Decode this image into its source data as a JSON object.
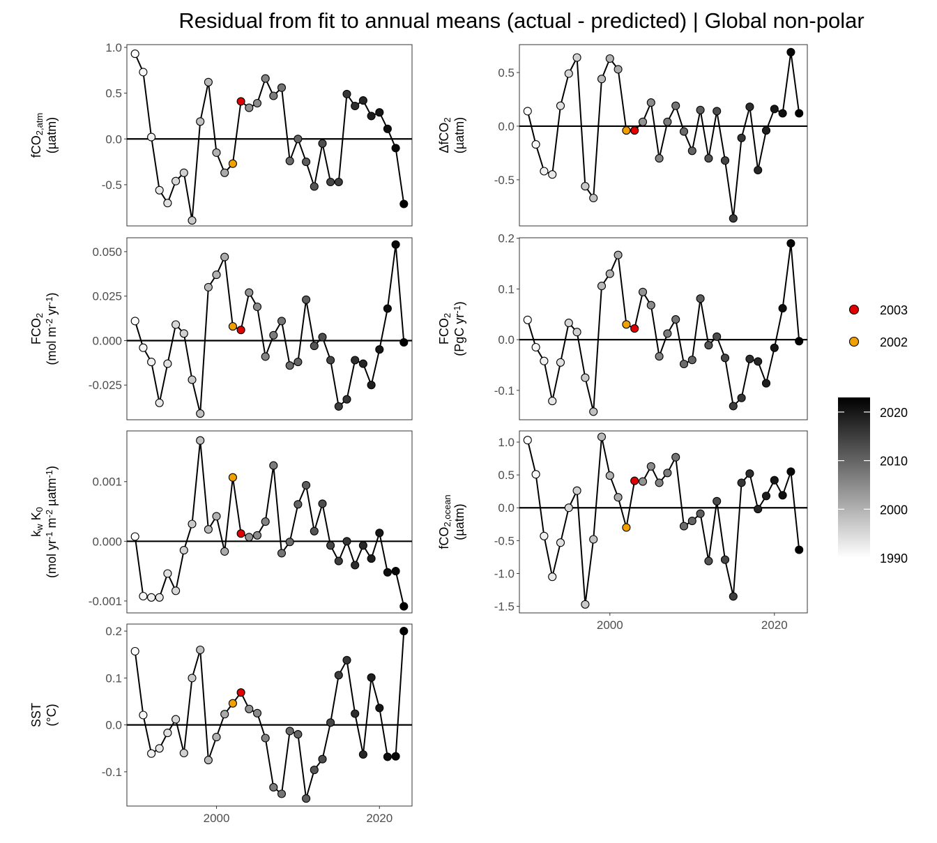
{
  "title": "Residual from fit to annual means (actual - predicted) | Global non-polar",
  "legend": {
    "highlight": [
      {
        "label": "2003",
        "color": "#e00000"
      },
      {
        "label": "2002",
        "color": "#f0a000"
      }
    ],
    "gradient_ticks": [
      "1990",
      "2000",
      "2010",
      "2020"
    ],
    "gradient_values": [
      1990,
      2000,
      2010,
      2020
    ],
    "gradient_range": [
      1990,
      2023
    ]
  },
  "chart_data": [
    {
      "type": "line",
      "id": "fco2atm",
      "ylabel_lines": [
        [
          {
            "t": "fCO"
          },
          {
            "t": "2,atm",
            "sub": true
          }
        ],
        [
          {
            "t": "(µatm)"
          }
        ]
      ],
      "ylim": [
        -0.95,
        1.03
      ],
      "yticks": [
        1.0,
        0.5,
        0.0,
        -0.5
      ],
      "ytick_labels": [
        "1.0",
        "0.5",
        "0.0",
        "-0.5"
      ],
      "xlim": [
        1989,
        2024
      ],
      "xticks": [
        2000,
        2020
      ],
      "xtick_labels": [
        "2000",
        "2020"
      ],
      "show_xaxis": false,
      "x": [
        1990,
        1991,
        1992,
        1993,
        1994,
        1995,
        1996,
        1997,
        1998,
        1999,
        2000,
        2001,
        2002,
        2003,
        2004,
        2005,
        2006,
        2007,
        2008,
        2009,
        2010,
        2011,
        2012,
        2013,
        2014,
        2015,
        2016,
        2017,
        2018,
        2019,
        2020,
        2021,
        2022,
        2023
      ],
      "values": [
        0.93,
        0.73,
        0.02,
        -0.56,
        -0.7,
        -0.46,
        -0.37,
        -0.89,
        0.19,
        0.62,
        -0.15,
        -0.37,
        -0.27,
        0.41,
        0.34,
        0.39,
        0.66,
        0.47,
        0.56,
        -0.24,
        0.0,
        -0.25,
        -0.52,
        -0.05,
        -0.47,
        -0.47,
        0.49,
        0.36,
        0.42,
        0.25,
        0.29,
        0.11,
        -0.1,
        -0.71
      ]
    },
    {
      "type": "line",
      "id": "dfco2",
      "ylabel_lines": [
        [
          {
            "t": "ΔfCO"
          },
          {
            "t": "2",
            "sub": true
          }
        ],
        [
          {
            "t": "(µatm)"
          }
        ]
      ],
      "ylim": [
        -0.93,
        0.76
      ],
      "yticks": [
        0.5,
        0.0,
        -0.5
      ],
      "ytick_labels": [
        "0.5",
        "0.0",
        "-0.5"
      ],
      "xlim": [
        1989,
        2024
      ],
      "xticks": [
        2000,
        2020
      ],
      "xtick_labels": [
        "2000",
        "2020"
      ],
      "show_xaxis": false,
      "x": [
        1990,
        1991,
        1992,
        1993,
        1994,
        1995,
        1996,
        1997,
        1998,
        1999,
        2000,
        2001,
        2002,
        2003,
        2004,
        2005,
        2006,
        2007,
        2008,
        2009,
        2010,
        2011,
        2012,
        2013,
        2014,
        2015,
        2016,
        2017,
        2018,
        2019,
        2020,
        2021,
        2022,
        2023
      ],
      "values": [
        0.14,
        -0.17,
        -0.42,
        -0.45,
        0.19,
        0.49,
        0.64,
        -0.56,
        -0.67,
        0.44,
        0.63,
        0.53,
        -0.04,
        -0.04,
        0.04,
        0.22,
        -0.3,
        0.04,
        0.19,
        -0.05,
        -0.23,
        0.15,
        -0.3,
        0.14,
        -0.32,
        -0.86,
        -0.11,
        0.18,
        -0.41,
        -0.04,
        0.16,
        0.12,
        0.69,
        0.12
      ]
    },
    {
      "type": "line",
      "id": "fco2flux_area",
      "ylabel_lines": [
        [
          {
            "t": "FCO"
          },
          {
            "t": "2",
            "sub": true
          }
        ],
        [
          {
            "t": "(mol m"
          },
          {
            "t": "-2",
            "sup": true
          },
          {
            "t": " yr"
          },
          {
            "t": "-1",
            "sup": true
          },
          {
            "t": ")"
          }
        ]
      ],
      "ylim": [
        -0.0445,
        0.0578
      ],
      "yticks": [
        0.05,
        0.025,
        0.0,
        -0.025
      ],
      "ytick_labels": [
        "0.050",
        "0.025",
        "0.000",
        "-0.025"
      ],
      "xlim": [
        1989,
        2024
      ],
      "xticks": [
        2000,
        2020
      ],
      "xtick_labels": [
        "2000",
        "2020"
      ],
      "show_xaxis": false,
      "x": [
        1990,
        1991,
        1992,
        1993,
        1994,
        1995,
        1996,
        1997,
        1998,
        1999,
        2000,
        2001,
        2002,
        2003,
        2004,
        2005,
        2006,
        2007,
        2008,
        2009,
        2010,
        2011,
        2012,
        2013,
        2014,
        2015,
        2016,
        2017,
        2018,
        2019,
        2020,
        2021,
        2022,
        2023
      ],
      "values": [
        0.011,
        -0.004,
        -0.012,
        -0.035,
        -0.013,
        0.009,
        0.004,
        -0.022,
        -0.041,
        0.03,
        0.037,
        0.047,
        0.008,
        0.006,
        0.027,
        0.019,
        -0.009,
        0.003,
        0.011,
        -0.014,
        -0.012,
        0.023,
        -0.003,
        0.002,
        -0.011,
        -0.037,
        -0.033,
        -0.011,
        -0.013,
        -0.025,
        -0.005,
        0.018,
        0.054,
        -0.001
      ]
    },
    {
      "type": "line",
      "id": "fco2flux_total",
      "ylabel_lines": [
        [
          {
            "t": "FCO"
          },
          {
            "t": "2",
            "sub": true
          }
        ],
        [
          {
            "t": "(PgC yr"
          },
          {
            "t": "-1",
            "sup": true
          },
          {
            "t": ")"
          }
        ]
      ],
      "ylim": [
        -0.158,
        0.201
      ],
      "yticks": [
        0.2,
        0.1,
        0.0,
        -0.1
      ],
      "ytick_labels": [
        "0.2",
        "0.1",
        "0.0",
        "-0.1"
      ],
      "xlim": [
        1989,
        2024
      ],
      "xticks": [
        2000,
        2020
      ],
      "xtick_labels": [
        "2000",
        "2020"
      ],
      "show_xaxis": false,
      "x": [
        1990,
        1991,
        1992,
        1993,
        1994,
        1995,
        1996,
        1997,
        1998,
        1999,
        2000,
        2001,
        2002,
        2003,
        2004,
        2005,
        2006,
        2007,
        2008,
        2009,
        2010,
        2011,
        2012,
        2013,
        2014,
        2015,
        2016,
        2017,
        2018,
        2019,
        2020,
        2021,
        2022,
        2023
      ],
      "values": [
        0.039,
        -0.015,
        -0.042,
        -0.121,
        -0.045,
        0.033,
        0.015,
        -0.075,
        -0.142,
        0.106,
        0.13,
        0.167,
        0.03,
        0.022,
        0.094,
        0.068,
        -0.033,
        0.012,
        0.04,
        -0.048,
        -0.04,
        0.081,
        -0.011,
        0.006,
        -0.036,
        -0.131,
        -0.115,
        -0.038,
        -0.043,
        -0.086,
        -0.016,
        0.062,
        0.19,
        -0.003
      ]
    },
    {
      "type": "line",
      "id": "kwk0",
      "ylabel_lines": [
        [
          {
            "t": "k"
          },
          {
            "t": "w",
            "sub": true
          },
          {
            "t": " K"
          },
          {
            "t": "0",
            "sub": true
          }
        ],
        [
          {
            "t": "(mol yr"
          },
          {
            "t": "-1",
            "sup": true
          },
          {
            "t": " m"
          },
          {
            "t": "-2",
            "sup": true
          },
          {
            "t": " µatm"
          },
          {
            "t": "-1",
            "sup": true
          },
          {
            "t": ")"
          }
        ]
      ],
      "ylim": [
        -0.0012,
        0.00185
      ],
      "yticks": [
        0.001,
        0.0,
        -0.001
      ],
      "ytick_labels": [
        "0.001",
        "0.000",
        "-0.001"
      ],
      "xlim": [
        1989,
        2024
      ],
      "xticks": [
        2000,
        2020
      ],
      "xtick_labels": [
        "2000",
        "2020"
      ],
      "show_xaxis": false,
      "x": [
        1990,
        1991,
        1992,
        1993,
        1994,
        1995,
        1996,
        1997,
        1998,
        1999,
        2000,
        2001,
        2002,
        2003,
        2004,
        2005,
        2006,
        2007,
        2008,
        2009,
        2010,
        2011,
        2012,
        2013,
        2014,
        2015,
        2016,
        2017,
        2018,
        2019,
        2020,
        2021,
        2022,
        2023
      ],
      "values": [
        8e-05,
        -0.00092,
        -0.00094,
        -0.00094,
        -0.00054,
        -0.00083,
        -0.00015,
        0.00029,
        0.00169,
        0.0002,
        0.00042,
        -0.00017,
        0.00107,
        0.00013,
        7e-05,
        0.0001,
        0.00033,
        0.00127,
        -0.0002,
        -1e-05,
        0.00062,
        0.00094,
        0.00017,
        0.00063,
        -7e-05,
        -0.00033,
        0.0,
        -0.0004,
        -7e-05,
        -0.00029,
        0.00014,
        -0.00052,
        -0.0005,
        -0.00109
      ]
    },
    {
      "type": "line",
      "id": "fco2ocean",
      "ylabel_lines": [
        [
          {
            "t": "fCO"
          },
          {
            "t": "2,ocean",
            "sub": true
          }
        ],
        [
          {
            "t": "(µatm)"
          }
        ]
      ],
      "ylim": [
        -1.6,
        1.17
      ],
      "yticks": [
        1.0,
        0.5,
        0.0,
        -0.5,
        -1.0,
        -1.5
      ],
      "ytick_labels": [
        "1.0",
        "0.5",
        "0.0",
        "-0.5",
        "-1.0",
        "-1.5"
      ],
      "xlim": [
        1989,
        2024
      ],
      "xticks": [
        2000,
        2020
      ],
      "xtick_labels": [
        "2000",
        "2020"
      ],
      "show_xaxis": true,
      "x": [
        1990,
        1991,
        1992,
        1993,
        1994,
        1995,
        1996,
        1997,
        1998,
        1999,
        2000,
        2001,
        2002,
        2003,
        2004,
        2005,
        2006,
        2007,
        2008,
        2009,
        2010,
        2011,
        2012,
        2013,
        2014,
        2015,
        2016,
        2017,
        2018,
        2019,
        2020,
        2021,
        2022,
        2023
      ],
      "values": [
        1.03,
        0.51,
        -0.43,
        -1.05,
        -0.53,
        0.0,
        0.26,
        -1.47,
        -0.48,
        1.08,
        0.49,
        0.16,
        -0.3,
        0.41,
        0.4,
        0.63,
        0.38,
        0.53,
        0.77,
        -0.28,
        -0.2,
        -0.09,
        -0.81,
        0.1,
        -0.79,
        -1.35,
        0.38,
        0.52,
        -0.02,
        0.18,
        0.42,
        0.19,
        0.55,
        -0.64
      ]
    },
    {
      "type": "line",
      "id": "sst",
      "ylabel_lines": [
        [
          {
            "t": "SST"
          }
        ],
        [
          {
            "t": "(°C)"
          }
        ]
      ],
      "ylim": [
        -0.173,
        0.215
      ],
      "yticks": [
        0.2,
        0.1,
        0.0,
        -0.1
      ],
      "ytick_labels": [
        "0.2",
        "0.1",
        "0.0",
        "-0.1"
      ],
      "xlim": [
        1989,
        2024
      ],
      "xticks": [
        2000,
        2020
      ],
      "xtick_labels": [
        "2000",
        "2020"
      ],
      "show_xaxis": true,
      "x": [
        1990,
        1991,
        1992,
        1993,
        1994,
        1995,
        1996,
        1997,
        1998,
        1999,
        2000,
        2001,
        2002,
        2003,
        2004,
        2005,
        2006,
        2007,
        2008,
        2009,
        2010,
        2011,
        2012,
        2013,
        2014,
        2015,
        2016,
        2017,
        2018,
        2019,
        2020,
        2021,
        2022,
        2023
      ],
      "values": [
        0.157,
        0.021,
        -0.061,
        -0.05,
        -0.017,
        0.012,
        -0.06,
        0.1,
        0.16,
        -0.075,
        -0.026,
        0.023,
        0.046,
        0.069,
        0.034,
        0.025,
        -0.028,
        -0.133,
        -0.147,
        -0.013,
        -0.02,
        -0.157,
        -0.096,
        -0.073,
        0.005,
        0.106,
        0.138,
        0.024,
        -0.063,
        0.101,
        0.036,
        -0.068,
        -0.067,
        0.2
      ]
    }
  ]
}
